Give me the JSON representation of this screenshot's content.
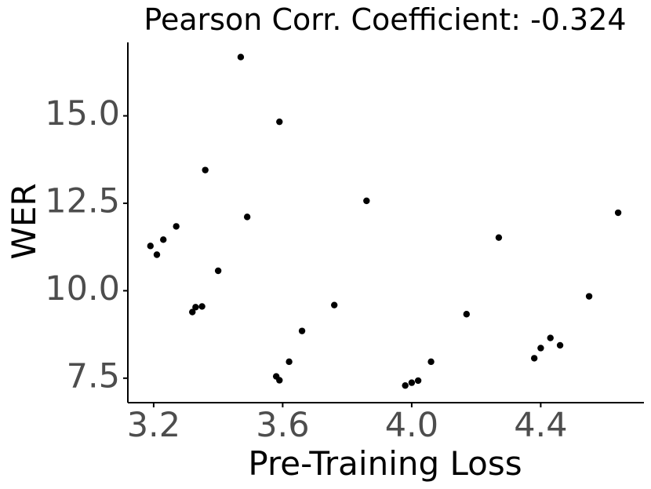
{
  "chart_data": {
    "type": "scatter",
    "title": "Pearson Corr. Coefficient: -0.324",
    "xlabel": "Pre-Training Loss",
    "ylabel": "WER",
    "xlim": [
      3.12,
      4.72
    ],
    "ylim": [
      6.8,
      17.1
    ],
    "xticks": [
      3.2,
      3.6,
      4.0,
      4.4
    ],
    "xtick_labels": [
      "3.2",
      "3.6",
      "4.0",
      "4.4"
    ],
    "yticks": [
      7.5,
      10.0,
      12.5,
      15.0
    ],
    "ytick_labels": [
      "7.5",
      "10.0",
      "12.5",
      "15.0"
    ],
    "grid": false,
    "point_color": "#000000",
    "points": [
      {
        "x": 3.19,
        "y": 11.28
      },
      {
        "x": 3.21,
        "y": 11.03
      },
      {
        "x": 3.23,
        "y": 11.46
      },
      {
        "x": 3.27,
        "y": 11.84
      },
      {
        "x": 3.32,
        "y": 9.39
      },
      {
        "x": 3.33,
        "y": 9.53
      },
      {
        "x": 3.35,
        "y": 9.55
      },
      {
        "x": 3.36,
        "y": 13.45
      },
      {
        "x": 3.4,
        "y": 10.57
      },
      {
        "x": 3.47,
        "y": 16.68
      },
      {
        "x": 3.49,
        "y": 12.11
      },
      {
        "x": 3.58,
        "y": 7.55
      },
      {
        "x": 3.59,
        "y": 7.44
      },
      {
        "x": 3.59,
        "y": 14.83
      },
      {
        "x": 3.62,
        "y": 7.97
      },
      {
        "x": 3.66,
        "y": 8.85
      },
      {
        "x": 3.76,
        "y": 9.59
      },
      {
        "x": 3.86,
        "y": 12.57
      },
      {
        "x": 3.98,
        "y": 7.29
      },
      {
        "x": 4.0,
        "y": 7.37
      },
      {
        "x": 4.02,
        "y": 7.43
      },
      {
        "x": 4.06,
        "y": 7.97
      },
      {
        "x": 4.17,
        "y": 9.33
      },
      {
        "x": 4.27,
        "y": 11.52
      },
      {
        "x": 4.38,
        "y": 8.07
      },
      {
        "x": 4.4,
        "y": 8.36
      },
      {
        "x": 4.43,
        "y": 8.65
      },
      {
        "x": 4.46,
        "y": 8.44
      },
      {
        "x": 4.55,
        "y": 9.84
      },
      {
        "x": 4.64,
        "y": 12.23
      }
    ]
  }
}
